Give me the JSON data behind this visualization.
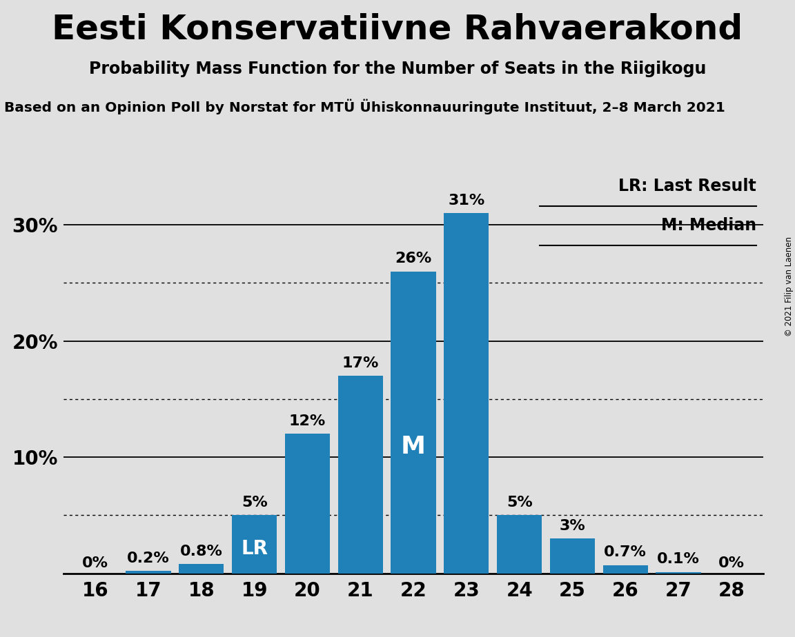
{
  "title": "Eesti Konservatiivne Rahvaerakond",
  "subtitle": "Probability Mass Function for the Number of Seats in the Riigikogu",
  "source": "Based on an Opinion Poll by Norstat for MTÜ Ühiskonnauuringute Instituut, 2–8 March 2021",
  "copyright": "© 2021 Filip van Laenen",
  "categories": [
    16,
    17,
    18,
    19,
    20,
    21,
    22,
    23,
    24,
    25,
    26,
    27,
    28
  ],
  "values": [
    0.0,
    0.2,
    0.8,
    5.0,
    12.0,
    17.0,
    26.0,
    31.0,
    5.0,
    3.0,
    0.7,
    0.1,
    0.0
  ],
  "labels": [
    "0%",
    "0.2%",
    "0.8%",
    "5%",
    "12%",
    "17%",
    "26%",
    "31%",
    "5%",
    "3%",
    "0.7%",
    "0.1%",
    "0%"
  ],
  "bar_color": "#2080B8",
  "background_color": "#E0E0E0",
  "ylim": [
    0,
    34
  ],
  "ytick_positions": [
    10,
    20,
    30
  ],
  "ytick_labels": [
    "10%",
    "20%",
    "30%"
  ],
  "solid_gridlines": [
    10,
    20,
    30
  ],
  "dotted_gridlines": [
    5,
    15,
    25
  ],
  "lr_bar": 19,
  "median_bar": 22,
  "legend_lr": "LR: Last Result",
  "legend_m": "M: Median"
}
